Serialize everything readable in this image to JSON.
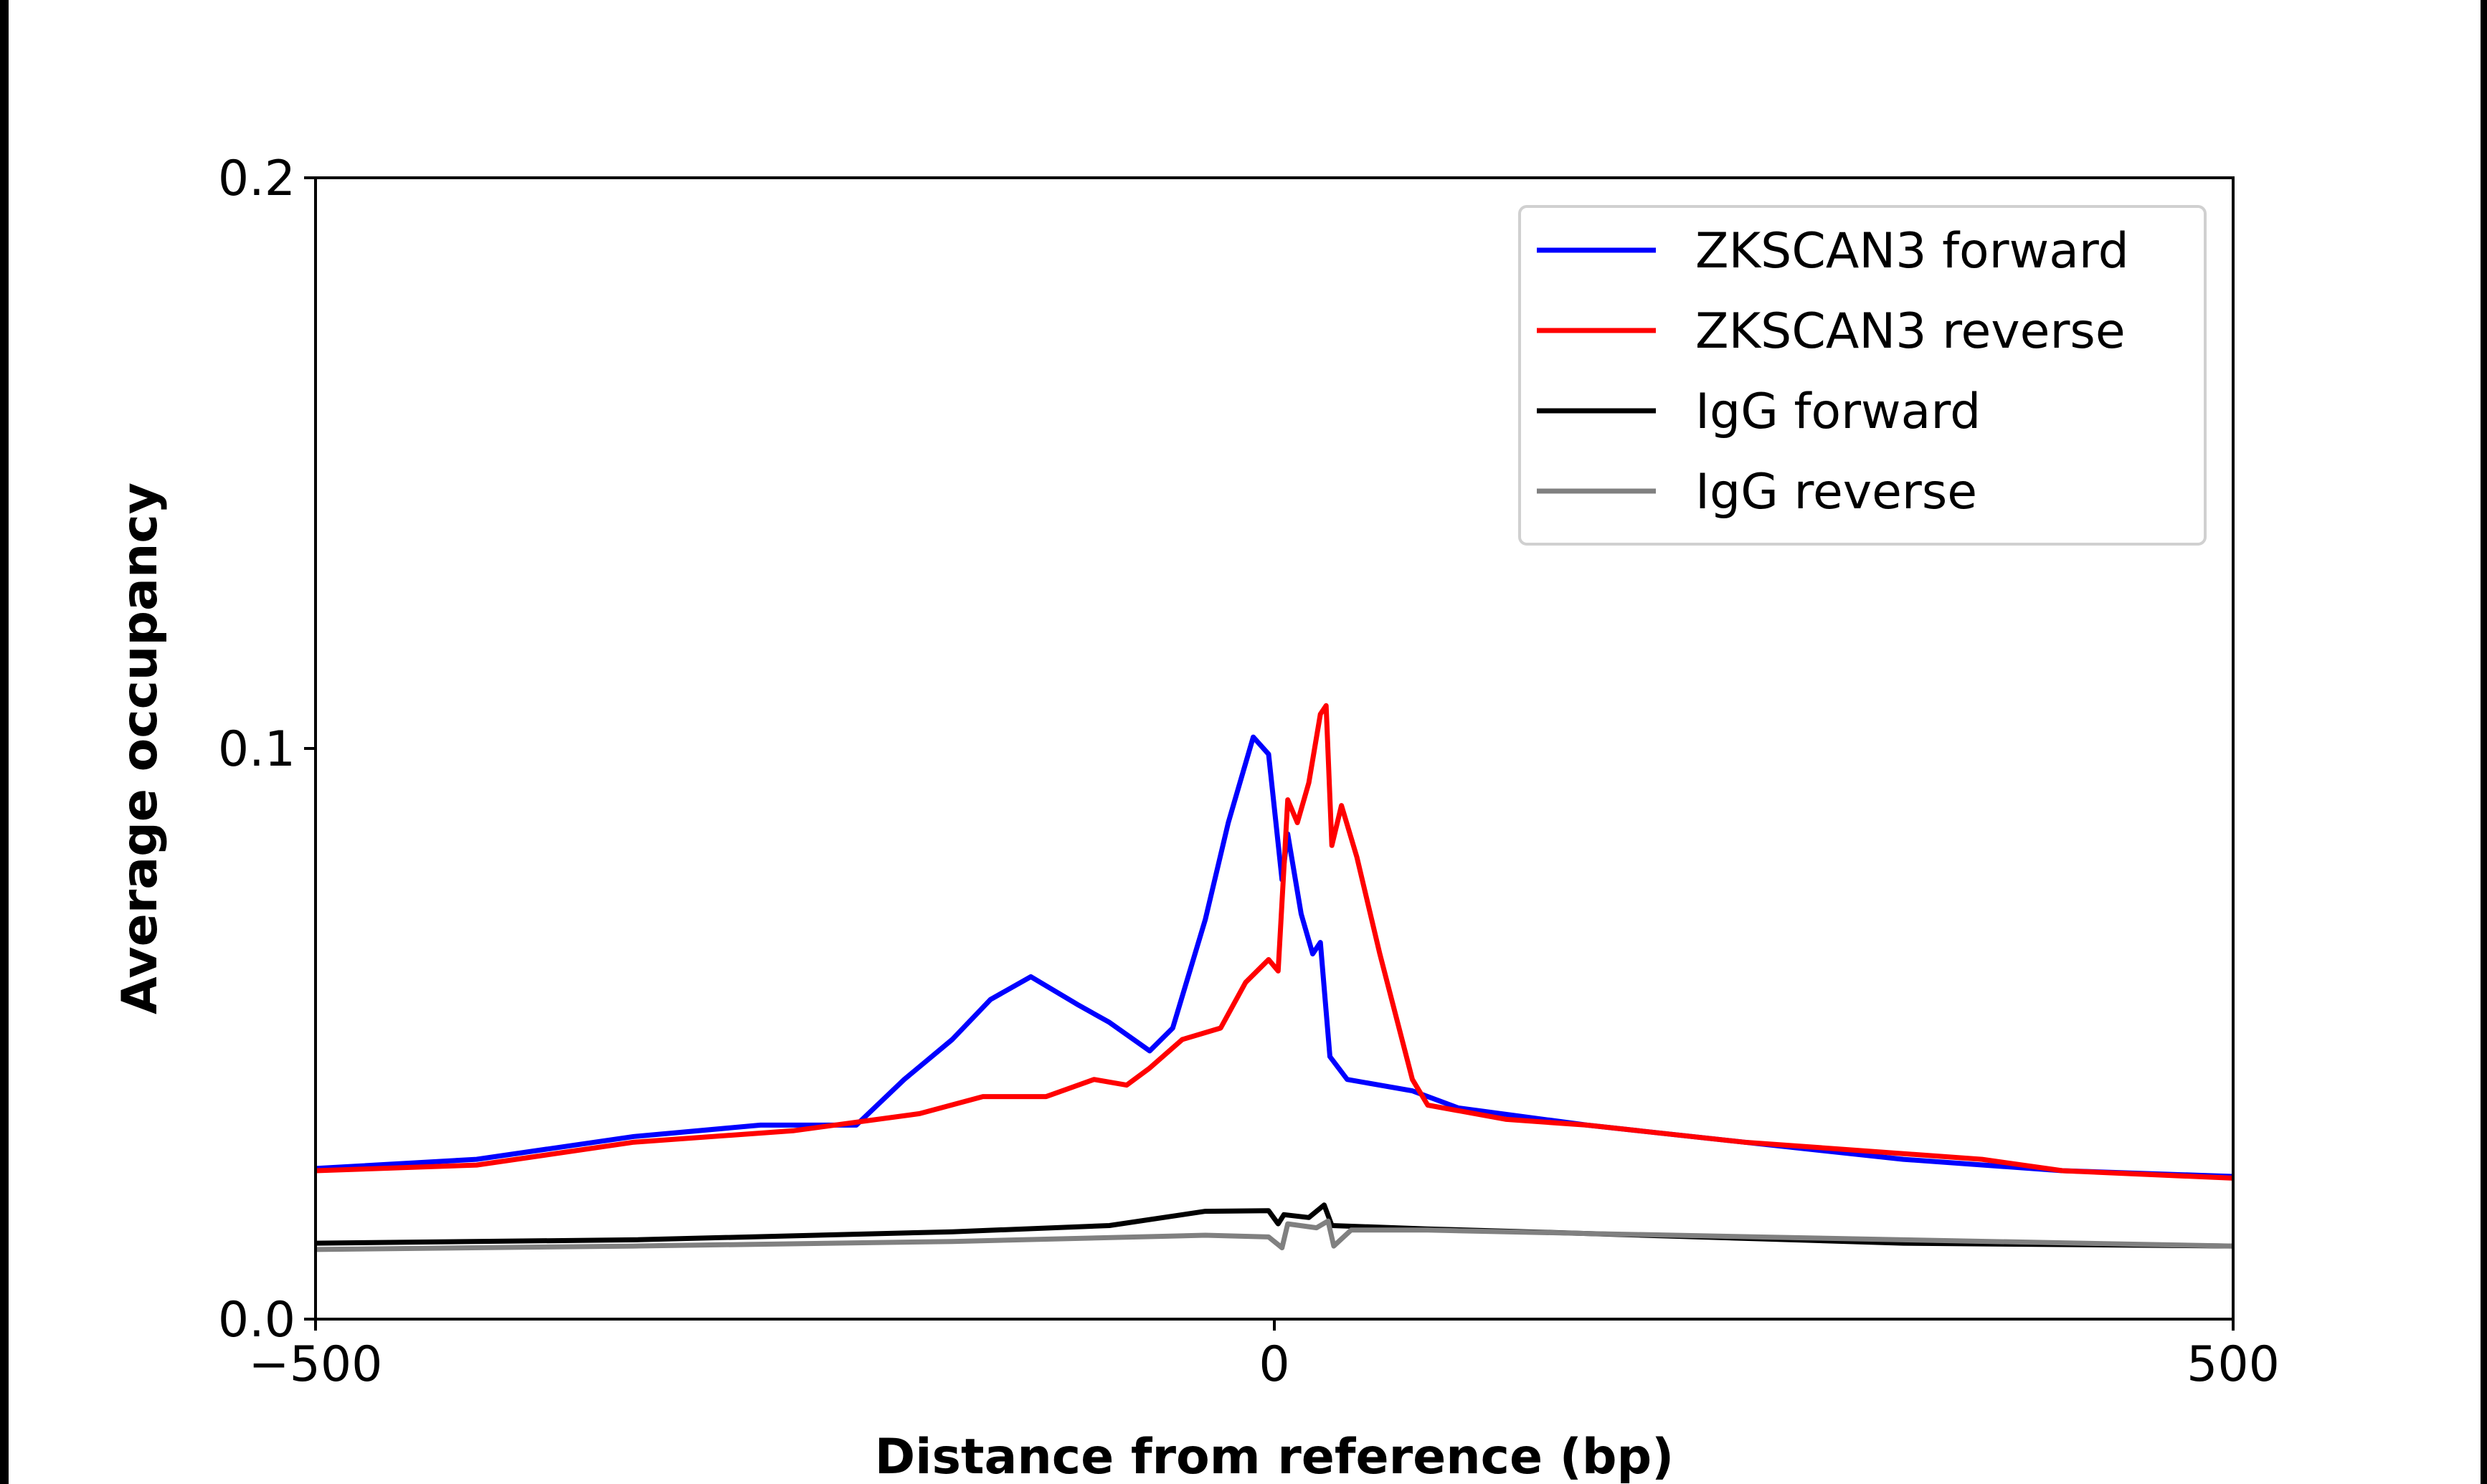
{
  "chart_data": {
    "type": "line",
    "title": "",
    "xlabel": "Distance from reference (bp)",
    "ylabel": "Average occupancy",
    "xlim": [
      -500,
      500
    ],
    "ylim": [
      0.0,
      0.2
    ],
    "xticks": [
      -500,
      0,
      500
    ],
    "xtick_labels": [
      "−500",
      "0",
      "500"
    ],
    "yticks": [
      0.0,
      0.1,
      0.2
    ],
    "ytick_labels": [
      "0.0",
      "0.1",
      "0.2"
    ],
    "grid": false,
    "legend_position": "top-right",
    "series": [
      {
        "name": "ZKSCAN3 forward",
        "color": "#0000ff",
        "x": [
          -500,
          -416,
          -334,
          -268,
          -218,
          -193,
          -168,
          -148,
          -127,
          -102,
          -86,
          -65,
          -53,
          -36,
          -24,
          -11,
          -3,
          4,
          7,
          14,
          20,
          24,
          29,
          38,
          72,
          96,
          163,
          245,
          328,
          411,
          500
        ],
        "y": [
          0.0264,
          0.028,
          0.032,
          0.034,
          0.034,
          0.042,
          0.049,
          0.056,
          0.06,
          0.055,
          0.052,
          0.047,
          0.051,
          0.07,
          0.087,
          0.102,
          0.099,
          0.077,
          0.085,
          0.071,
          0.064,
          0.066,
          0.046,
          0.042,
          0.04,
          0.037,
          0.034,
          0.031,
          0.028,
          0.026,
          0.025
        ]
      },
      {
        "name": "ZKSCAN3 reverse",
        "color": "#ff0000",
        "x": [
          -500,
          -416,
          -334,
          -251,
          -185,
          -152,
          -119,
          -94,
          -77,
          -65,
          -48,
          -28,
          -15,
          -3,
          2,
          7,
          12,
          18,
          24,
          27,
          30,
          35,
          43,
          55,
          72,
          80,
          121,
          163,
          245,
          328,
          369,
          411,
          500
        ],
        "y": [
          0.026,
          0.027,
          0.031,
          0.033,
          0.036,
          0.039,
          0.039,
          0.042,
          0.041,
          0.044,
          0.049,
          0.051,
          0.059,
          0.063,
          0.061,
          0.091,
          0.087,
          0.094,
          0.106,
          0.1075,
          0.083,
          0.09,
          0.081,
          0.064,
          0.042,
          0.0375,
          0.035,
          0.034,
          0.031,
          0.029,
          0.028,
          0.026,
          0.0247
        ]
      },
      {
        "name": "IgG forward",
        "color": "#000000",
        "x": [
          -500,
          -334,
          -168,
          -86,
          -36,
          -3,
          2,
          5,
          18,
          26,
          30,
          80,
          163,
          328,
          500
        ],
        "y": [
          0.0133,
          0.0139,
          0.0153,
          0.0164,
          0.0189,
          0.019,
          0.0167,
          0.0183,
          0.0178,
          0.02,
          0.0164,
          0.0158,
          0.015,
          0.0133,
          0.0128
        ]
      },
      {
        "name": "IgG reverse",
        "color": "#808080",
        "x": [
          -500,
          -334,
          -168,
          -36,
          -3,
          4,
          7,
          22,
          28,
          31,
          40,
          80,
          163,
          328,
          500
        ],
        "y": [
          0.0122,
          0.0128,
          0.0136,
          0.0147,
          0.0144,
          0.0125,
          0.0167,
          0.016,
          0.0172,
          0.0128,
          0.0156,
          0.0156,
          0.015,
          0.0139,
          0.0128
        ]
      }
    ]
  }
}
